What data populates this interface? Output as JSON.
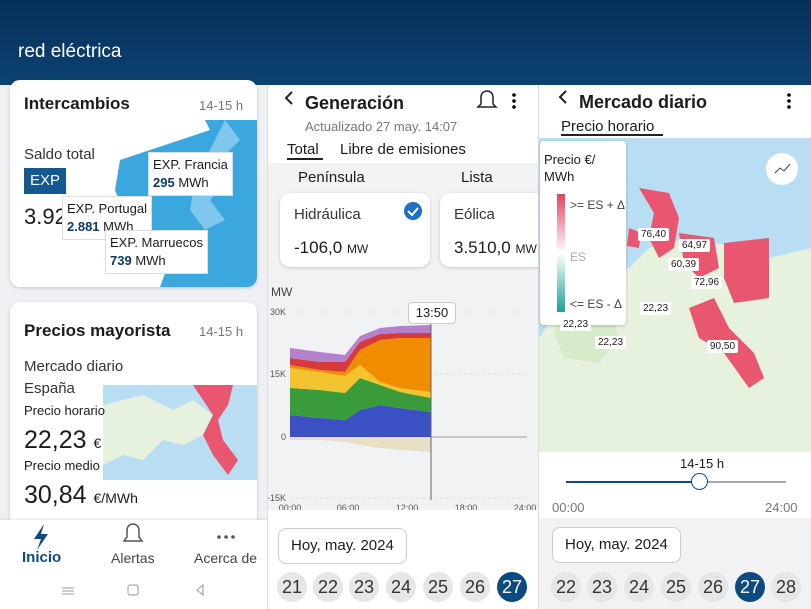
{
  "header": {
    "brand": "red eléctrica"
  },
  "left": {
    "intercambios": {
      "title": "Intercambios",
      "time": "14-15 h",
      "saldo": "Saldo total",
      "exp": "EXP",
      "value": "3.92",
      "tooltips": [
        {
          "label": "EXP. Francia",
          "value": "295",
          "unit": "MWh"
        },
        {
          "label": "EXP. Portugal",
          "value": "2.881",
          "unit": "MWh"
        },
        {
          "label": "EXP. Marruecos",
          "value": "739",
          "unit": "MWh"
        }
      ]
    },
    "precios": {
      "title": "Precios mayorista",
      "time": "14-15 h",
      "market": "Mercado diario",
      "country": "España",
      "hourly_label": "Precio horario",
      "hourly_value": "22,23",
      "hourly_unit": "€",
      "mean_label": "Precio medio",
      "mean_value": "30,84",
      "mean_unit": "€/MWh"
    },
    "nav": [
      "Inicio",
      "Alertas",
      "Acerca de"
    ]
  },
  "middle": {
    "title": "Generación",
    "updated": "Actualizado 27 may. 14:07",
    "tabs": [
      "Total",
      "Libre de emisiones"
    ],
    "region": "Península",
    "view": "Lista",
    "cards": [
      {
        "name": "Hidráulica",
        "value": "-106,0",
        "unit": "MW"
      },
      {
        "name": "Eólica",
        "value": "3.510,0",
        "unit": "MW"
      }
    ],
    "chart": {
      "y_label": "MW",
      "yticks": [
        "30K",
        "15K",
        "0",
        "-15K"
      ],
      "xticks": [
        "00:00",
        "06:00",
        "12:00",
        "18:00",
        "24:00"
      ],
      "cursor": "13:50"
    },
    "date": "Hoy, may. 2024",
    "days": [
      "21",
      "22",
      "23",
      "24",
      "25",
      "26",
      "27"
    ]
  },
  "right": {
    "title": "Mercado diario",
    "tab": "Precio horario",
    "legend": {
      "title": "Precio €/ MWh",
      "high": ">= ES + Δ",
      "mid": "ES",
      "low": "<= ES - Δ"
    },
    "prices": [
      "76,40",
      "64,97",
      "60,39",
      "72,96",
      "22,23",
      "22,23",
      "22,23",
      "90,50"
    ],
    "slider": {
      "label": "14-15 h",
      "start": "00:00",
      "end": "24:00"
    },
    "date": "Hoy, may. 2024",
    "days": [
      "22",
      "23",
      "24",
      "25",
      "26",
      "27",
      "28"
    ]
  }
}
